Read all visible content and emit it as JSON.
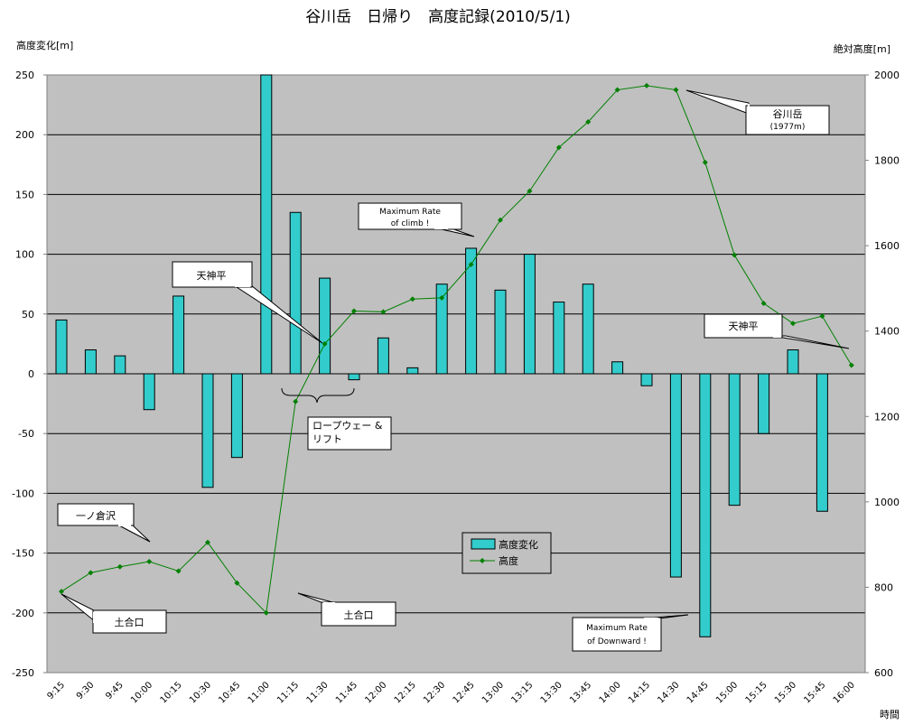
{
  "chart_data": {
    "type": "bar+line",
    "title": "谷川岳　日帰り　高度記録(2010/5/1)",
    "ylabel_left": "高度変化[m]",
    "ylabel_right": "絶対高度[m]",
    "xlabel": "時間",
    "ylim_left": [
      -250,
      250
    ],
    "ylim_right": [
      600,
      2000
    ],
    "yticks_left": [
      250,
      200,
      150,
      100,
      50,
      0,
      -50,
      -100,
      -150,
      -200,
      -250
    ],
    "yticks_right": [
      2000,
      1800,
      1600,
      1400,
      1200,
      1000,
      800,
      600
    ],
    "categories": [
      "9:15",
      "9:30",
      "9:45",
      "10:00",
      "10:15",
      "10:30",
      "10:45",
      "11:00",
      "11:15",
      "11:30",
      "11:45",
      "12:00",
      "12:15",
      "12:30",
      "12:45",
      "13:00",
      "13:15",
      "13:30",
      "13:45",
      "14:00",
      "14:15",
      "14:30",
      "14:45",
      "15:00",
      "15:15",
      "15:30",
      "15:45",
      "16:00"
    ],
    "series": [
      {
        "name": "高度変化",
        "kind": "bar",
        "axis": "left",
        "color": "#33cccc",
        "values": [
          45,
          20,
          15,
          -30,
          65,
          -95,
          -70,
          250,
          135,
          80,
          -5,
          30,
          5,
          75,
          105,
          70,
          100,
          60,
          75,
          10,
          -10,
          -170,
          -220,
          -110,
          -50,
          20,
          -115,
          null
        ]
      },
      {
        "name": "高度",
        "kind": "line",
        "axis": "right",
        "color": "#008000",
        "values": [
          790,
          834,
          848,
          860,
          838,
          905,
          810,
          740,
          1235,
          1370,
          1447,
          1445,
          1475,
          1478,
          1556,
          1660,
          1728,
          1830,
          1890,
          1965,
          1975,
          1965,
          1795,
          1578,
          1465,
          1418,
          1435,
          1320
        ]
      }
    ],
    "grid": true,
    "legend_position": "bottom-center"
  },
  "annotations": {
    "peak": [
      "谷川岳",
      "(1977m)"
    ],
    "tenjindaira_left": "天神平",
    "tenjindaira_right": "天神平",
    "max_climb": [
      "Maximum Rate",
      "of climb !"
    ],
    "ropeway": [
      "ロープウェー &",
      "リフト"
    ],
    "ichinokurasawa": "一ノ倉沢",
    "doaiguchi_left": "土合口",
    "doaiguchi_right": "土合口",
    "max_downward": [
      "Maximum Rate",
      "of Downward !"
    ]
  },
  "colors": {
    "plot_bg": "#c0c0c0",
    "bar_fill": "#33cccc",
    "line": "#008000"
  }
}
